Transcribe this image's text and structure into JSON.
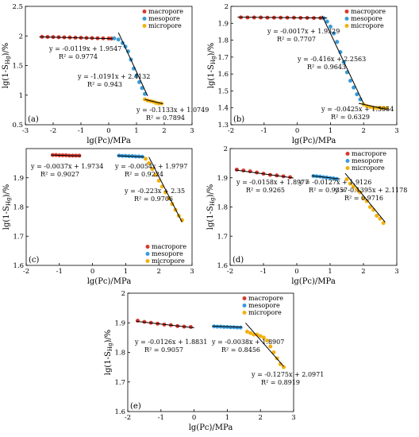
{
  "colors": {
    "macropore": "#d63a2f",
    "mesopore": "#3a9bd8",
    "micropore": "#f2b10f"
  },
  "chart_data": [
    {
      "type": "scatter",
      "panel_label": "(a)",
      "xlabel": "lg(Pc)/MPa",
      "ylabel": "lg(1-S_Hg)/%",
      "xlim": [
        -3,
        3
      ],
      "ylim": [
        0.5,
        2.5
      ],
      "xticks": [
        -3,
        -2,
        -1,
        0,
        1,
        2,
        3
      ],
      "yticks": [
        0.5,
        1,
        1.5,
        2,
        2.5
      ],
      "legend": {
        "position": "top-right",
        "entries": [
          "macropore",
          "mesopore",
          "micropore"
        ]
      },
      "series": [
        {
          "name": "macropore",
          "x": [
            -2.4,
            -2.2,
            -2.0,
            -1.8,
            -1.6,
            -1.4,
            -1.2,
            -1.0,
            -0.8,
            -0.6,
            -0.4,
            -0.2,
            0.0,
            0.1
          ],
          "y": [
            1.985,
            1.983,
            1.981,
            1.979,
            1.977,
            1.974,
            1.972,
            1.97,
            1.967,
            1.965,
            1.962,
            1.96,
            1.958,
            1.957
          ]
        },
        {
          "name": "mesopore",
          "x": [
            0.2,
            0.35,
            0.5,
            0.6,
            0.7,
            0.8,
            0.9,
            1.0,
            1.1,
            1.2,
            1.3
          ],
          "y": [
            1.96,
            1.94,
            1.88,
            1.82,
            1.74,
            1.6,
            1.45,
            1.33,
            1.22,
            1.12,
            1.02
          ]
        },
        {
          "name": "micropore",
          "x": [
            1.3,
            1.4,
            1.5,
            1.6,
            1.7,
            1.8,
            1.9
          ],
          "y": [
            0.93,
            0.91,
            0.9,
            0.89,
            0.87,
            0.86,
            0.86
          ]
        }
      ],
      "fits": [
        {
          "eq": "y = -0.0119x + 1.9547",
          "r2": "R² = 0.9774",
          "x": [
            -2.5,
            0.15
          ]
        },
        {
          "eq": "y = -1.0191x + 2.4132",
          "r2": "R² = 0.943",
          "x": [
            0.35,
            1.4
          ]
        },
        {
          "eq": "y = -0.1133x + 1.0749",
          "r2": "R² = 0.7894",
          "x": [
            1.3,
            1.95
          ]
        }
      ]
    },
    {
      "type": "scatter",
      "panel_label": "(b)",
      "xlabel": "lg(Pc)/MPa",
      "ylabel": "lg(1-S_Hg)/%",
      "xlim": [
        -2,
        3
      ],
      "ylim": [
        1.3,
        2
      ],
      "xticks": [
        -2,
        -1,
        0,
        1,
        2,
        3
      ],
      "yticks": [
        1.3,
        1.4,
        1.5,
        1.6,
        1.7,
        1.8,
        1.9,
        2
      ],
      "legend": {
        "position": "top-right",
        "entries": [
          "macropore",
          "mesopore",
          "micropore"
        ]
      },
      "series": [
        {
          "name": "macropore",
          "x": [
            -1.7,
            -1.5,
            -1.3,
            -1.1,
            -0.9,
            -0.7,
            -0.5,
            -0.3,
            -0.1,
            0.1,
            0.3,
            0.5,
            0.7
          ],
          "y": [
            1.935,
            1.934,
            1.934,
            1.934,
            1.933,
            1.933,
            1.933,
            1.933,
            1.933,
            1.932,
            1.932,
            1.931,
            1.931
          ]
        },
        {
          "name": "mesopore",
          "x": [
            0.8,
            0.9,
            1.0,
            1.1,
            1.2,
            1.3,
            1.4,
            1.5,
            1.6,
            1.7,
            1.8,
            1.9
          ],
          "y": [
            1.93,
            1.91,
            1.88,
            1.84,
            1.79,
            1.73,
            1.67,
            1.61,
            1.56,
            1.52,
            1.48,
            1.45
          ]
        },
        {
          "name": "micropore",
          "x": [
            2.0,
            2.1,
            2.2,
            2.3,
            2.4,
            2.5,
            2.6,
            2.7
          ],
          "y": [
            1.42,
            1.41,
            1.405,
            1.4,
            1.4,
            1.4,
            1.399,
            1.398
          ]
        }
      ],
      "fits": [
        {
          "eq": "y = -0.0017x + 1.9329",
          "r2": "R² = 0.7707",
          "x": [
            -1.8,
            0.9
          ]
        },
        {
          "eq": "y = -0.416x + 2.2563",
          "r2": "R² = 0.9643",
          "x": [
            0.75,
            2.0
          ]
        },
        {
          "eq": "y = -0.0425x + 1.5054",
          "r2": "R² = 0.6329",
          "x": [
            1.85,
            2.75
          ]
        }
      ]
    },
    {
      "type": "scatter",
      "panel_label": "(c)",
      "xlabel": "lg(Pc)/MPa",
      "ylabel": "lg(1-S_Hg)/%",
      "xlim": [
        -2,
        3
      ],
      "ylim": [
        1.6,
        2
      ],
      "xticks": [
        -2,
        -1,
        0,
        1,
        2,
        3
      ],
      "yticks": [
        1.6,
        1.7,
        1.8,
        1.9
      ],
      "legend": {
        "position": "bottom-right",
        "entries": [
          "macropore",
          "mesopore",
          "micropore"
        ]
      },
      "series": [
        {
          "name": "macropore",
          "x": [
            -1.2,
            -1.1,
            -1.0,
            -0.9,
            -0.8,
            -0.7,
            -0.6,
            -0.5,
            -0.4
          ],
          "y": [
            1.978,
            1.978,
            1.977,
            1.977,
            1.977,
            1.976,
            1.976,
            1.976,
            1.976
          ]
        },
        {
          "name": "mesopore",
          "x": [
            0.8,
            0.9,
            1.0,
            1.1,
            1.2,
            1.3,
            1.4,
            1.5
          ],
          "y": [
            1.976,
            1.975,
            1.975,
            1.974,
            1.974,
            1.973,
            1.973,
            1.972
          ]
        },
        {
          "name": "micropore",
          "x": [
            1.6,
            1.7,
            1.8,
            1.9,
            2.0,
            2.1,
            2.2,
            2.3,
            2.4,
            2.5,
            2.6,
            2.7
          ],
          "y": [
            1.965,
            1.95,
            1.93,
            1.91,
            1.89,
            1.87,
            1.85,
            1.83,
            1.81,
            1.79,
            1.77,
            1.755
          ]
        }
      ],
      "fits": [
        {
          "eq": "y = -0.0037x + 1.9734",
          "r2": "R² = 0.9027",
          "x": [
            -1.25,
            -0.35
          ]
        },
        {
          "eq": "y = -0.0054x + 1.9797",
          "r2": "R² = 0.9224",
          "x": [
            0.75,
            1.55
          ]
        },
        {
          "eq": "y = -0.223x + 2.35",
          "r2": "R² = 0.9706",
          "x": [
            1.7,
            2.7
          ]
        }
      ]
    },
    {
      "type": "scatter",
      "panel_label": "(d)",
      "xlabel": "lg(Pc)/MPa",
      "ylabel": "lg(1-S_Hg)/%",
      "xlim": [
        -2,
        3
      ],
      "ylim": [
        1.6,
        2
      ],
      "xticks": [
        -2,
        -1,
        0,
        1,
        2,
        3
      ],
      "yticks": [
        1.6,
        1.7,
        1.8,
        1.9,
        2
      ],
      "legend": {
        "position": "top-right",
        "entries": [
          "macropore",
          "mesopore",
          "micropore"
        ]
      },
      "series": [
        {
          "name": "macropore",
          "x": [
            -1.8,
            -1.6,
            -1.4,
            -1.2,
            -1.0,
            -0.8,
            -0.6,
            -0.4,
            -0.2
          ],
          "y": [
            1.928,
            1.925,
            1.922,
            1.918,
            1.914,
            1.91,
            1.908,
            1.905,
            1.902
          ]
        },
        {
          "name": "mesopore",
          "x": [
            0.5,
            0.6,
            0.7,
            0.8,
            0.9,
            1.0,
            1.1,
            1.2
          ],
          "y": [
            1.906,
            1.905,
            1.904,
            1.902,
            1.901,
            1.899,
            1.898,
            1.896
          ]
        },
        {
          "name": "micropore",
          "x": [
            1.5,
            1.6,
            1.7,
            1.8,
            1.9,
            2.0,
            2.1,
            2.2,
            2.3,
            2.4,
            2.5,
            2.6
          ],
          "y": [
            1.895,
            1.88,
            1.87,
            1.86,
            1.85,
            1.83,
            1.82,
            1.8,
            1.79,
            1.77,
            1.76,
            1.745
          ]
        }
      ],
      "fits": [
        {
          "eq": "y = -0.0158x + 1.8977",
          "r2": "R² = 0.9265",
          "x": [
            -1.85,
            -0.1
          ]
        },
        {
          "eq": "y = -0.0127x + 1.9126",
          "r2": "R² = 0.9357",
          "x": [
            0.45,
            1.3
          ]
        },
        {
          "eq": "y = -0.1395x + 2.1178",
          "r2": "R² = 0.9716",
          "x": [
            1.45,
            2.65
          ]
        }
      ]
    },
    {
      "type": "scatter",
      "panel_label": "(e)",
      "xlabel": "lg(Pc)/MPa",
      "ylabel": "lg(1-S_Hg)/%",
      "xlim": [
        -2,
        3
      ],
      "ylim": [
        1.6,
        2
      ],
      "xticks": [
        -2,
        -1,
        0,
        1,
        2,
        3
      ],
      "yticks": [
        1.6,
        1.7,
        1.8,
        1.9,
        2
      ],
      "legend": {
        "position": "top-right",
        "entries": [
          "macropore",
          "mesopore",
          "micropore"
        ]
      },
      "series": [
        {
          "name": "macropore",
          "x": [
            -1.7,
            -1.5,
            -1.3,
            -1.1,
            -0.9,
            -0.7,
            -0.5,
            -0.3,
            -0.1
          ],
          "y": [
            1.907,
            1.903,
            1.9,
            1.897,
            1.894,
            1.892,
            1.889,
            1.887,
            1.886
          ]
        },
        {
          "name": "mesopore",
          "x": [
            0.6,
            0.7,
            0.8,
            0.9,
            1.0,
            1.1,
            1.2,
            1.3,
            1.4
          ],
          "y": [
            1.888,
            1.887,
            1.887,
            1.886,
            1.886,
            1.885,
            1.885,
            1.884,
            1.884
          ]
        },
        {
          "name": "micropore",
          "x": [
            1.6,
            1.7,
            1.8,
            1.9,
            2.0,
            2.1,
            2.2,
            2.3,
            2.4,
            2.5,
            2.6,
            2.7
          ],
          "y": [
            1.87,
            1.865,
            1.86,
            1.86,
            1.855,
            1.85,
            1.84,
            1.82,
            1.8,
            1.78,
            1.76,
            1.75
          ]
        }
      ],
      "fits": [
        {
          "eq": "y = -0.0126x + 1.8831",
          "r2": "R² = 0.9057",
          "x": [
            -1.75,
            0.0
          ]
        },
        {
          "eq": "y = -0.0038x + 1.8907",
          "r2": "R² = 0.8456",
          "x": [
            0.55,
            1.45
          ]
        },
        {
          "eq": "y = -0.1275x + 2.0971",
          "r2": "R² = 0.8919",
          "x": [
            1.55,
            2.7
          ]
        }
      ]
    }
  ]
}
